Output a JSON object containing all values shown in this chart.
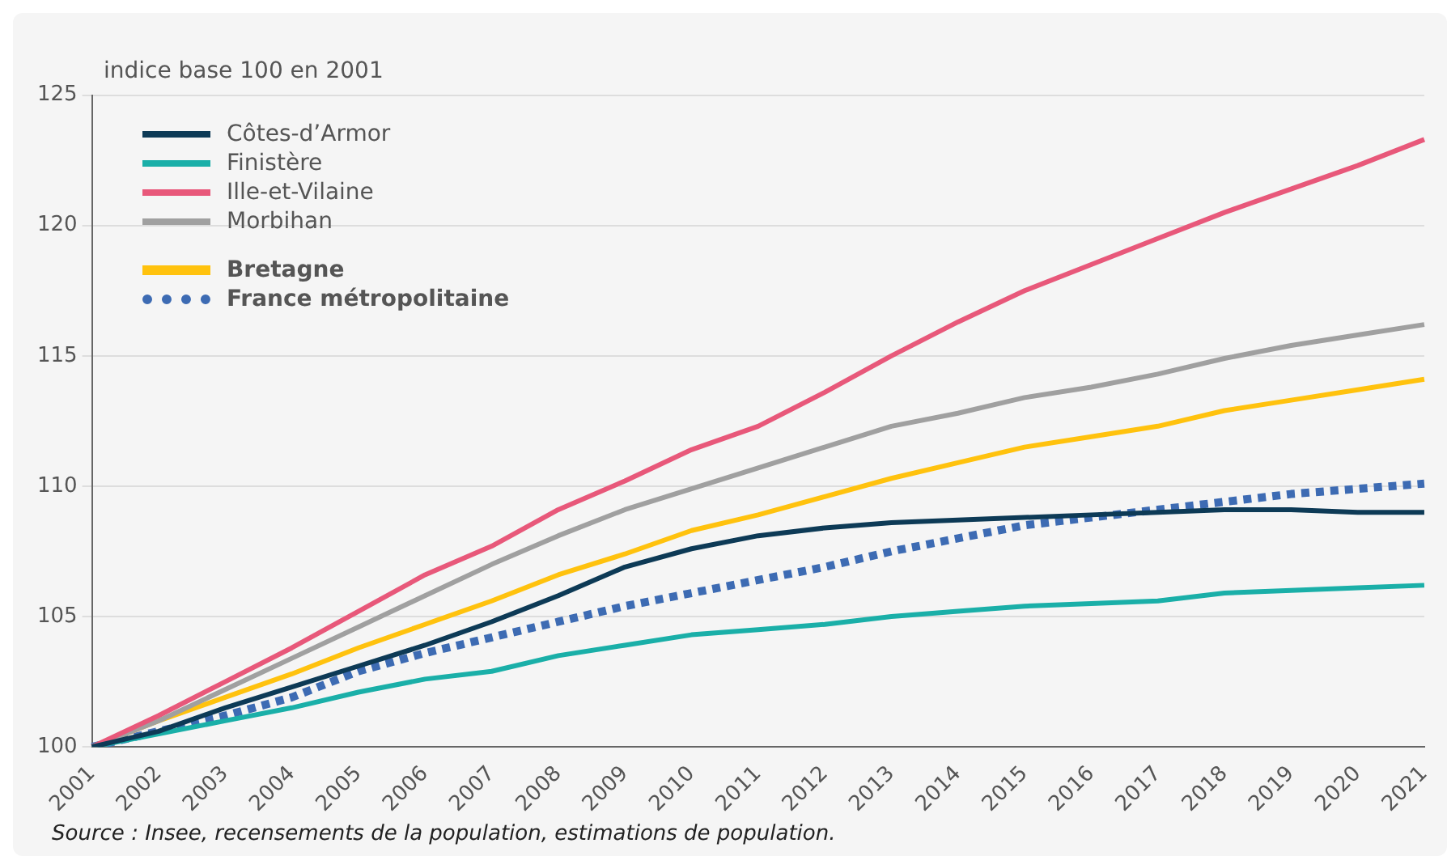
{
  "chart_data": {
    "type": "line",
    "ylabel": "indice base 100 en 2001",
    "annotations": [
      "Source : Insee, recensements de la population, estimations de population."
    ],
    "categories": [
      "2001",
      "2002",
      "2003",
      "2004",
      "2005",
      "2006",
      "2007",
      "2008",
      "2009",
      "2010",
      "2011",
      "2012",
      "2013",
      "2014",
      "2015",
      "2016",
      "2017",
      "2018",
      "2019",
      "2020",
      "2021"
    ],
    "series": [
      {
        "name": "Côtes-d’Armor",
        "color": "#0d3a56",
        "values": [
          100,
          100.6,
          101.5,
          102.3,
          103.1,
          103.9,
          104.8,
          105.8,
          106.9,
          107.6,
          108.1,
          108.4,
          108.6,
          108.7,
          108.8,
          108.9,
          109.0,
          109.1,
          109.1,
          109.0,
          109.0
        ]
      },
      {
        "name": "Finistère",
        "color": "#1aafa8",
        "values": [
          100,
          100.5,
          101.0,
          101.5,
          102.1,
          102.6,
          102.9,
          103.5,
          103.9,
          104.3,
          104.5,
          104.7,
          105.0,
          105.2,
          105.4,
          105.5,
          105.6,
          105.9,
          106.0,
          106.1,
          106.2
        ]
      },
      {
        "name": "Ille-et-Vilaine",
        "color": "#e8587a",
        "values": [
          100,
          101.2,
          102.5,
          103.8,
          105.2,
          106.6,
          107.7,
          109.1,
          110.2,
          111.4,
          112.3,
          113.6,
          115.0,
          116.3,
          117.5,
          118.5,
          119.5,
          120.5,
          121.4,
          122.3,
          123.3
        ]
      },
      {
        "name": "Morbihan",
        "color": "#a0a0a0",
        "values": [
          100,
          101.0,
          102.2,
          103.4,
          104.6,
          105.8,
          107.0,
          108.1,
          109.1,
          109.9,
          110.7,
          111.5,
          112.3,
          112.8,
          113.4,
          113.8,
          114.3,
          114.9,
          115.4,
          115.8,
          116.2
        ]
      },
      {
        "name": "Bretagne",
        "color": "#ffc20e",
        "values": [
          100,
          101.0,
          101.9,
          102.8,
          103.8,
          104.7,
          105.6,
          106.6,
          107.4,
          108.3,
          108.9,
          109.6,
          110.3,
          110.9,
          111.5,
          111.9,
          112.3,
          112.9,
          113.3,
          113.7,
          114.1
        ]
      },
      {
        "name": "France métropolitaine",
        "color": "#3d6bb3",
        "line_style": "dotted",
        "values": [
          100,
          100.6,
          101.2,
          101.9,
          102.9,
          103.6,
          104.2,
          104.8,
          105.4,
          105.9,
          106.4,
          106.9,
          107.5,
          108.0,
          108.5,
          108.8,
          109.1,
          109.4,
          109.7,
          109.9,
          110.1
        ]
      }
    ],
    "ylim": [
      100,
      125
    ],
    "yticks": [
      100,
      105,
      110,
      115,
      120,
      125
    ],
    "grid": "y",
    "legend": "top left"
  }
}
